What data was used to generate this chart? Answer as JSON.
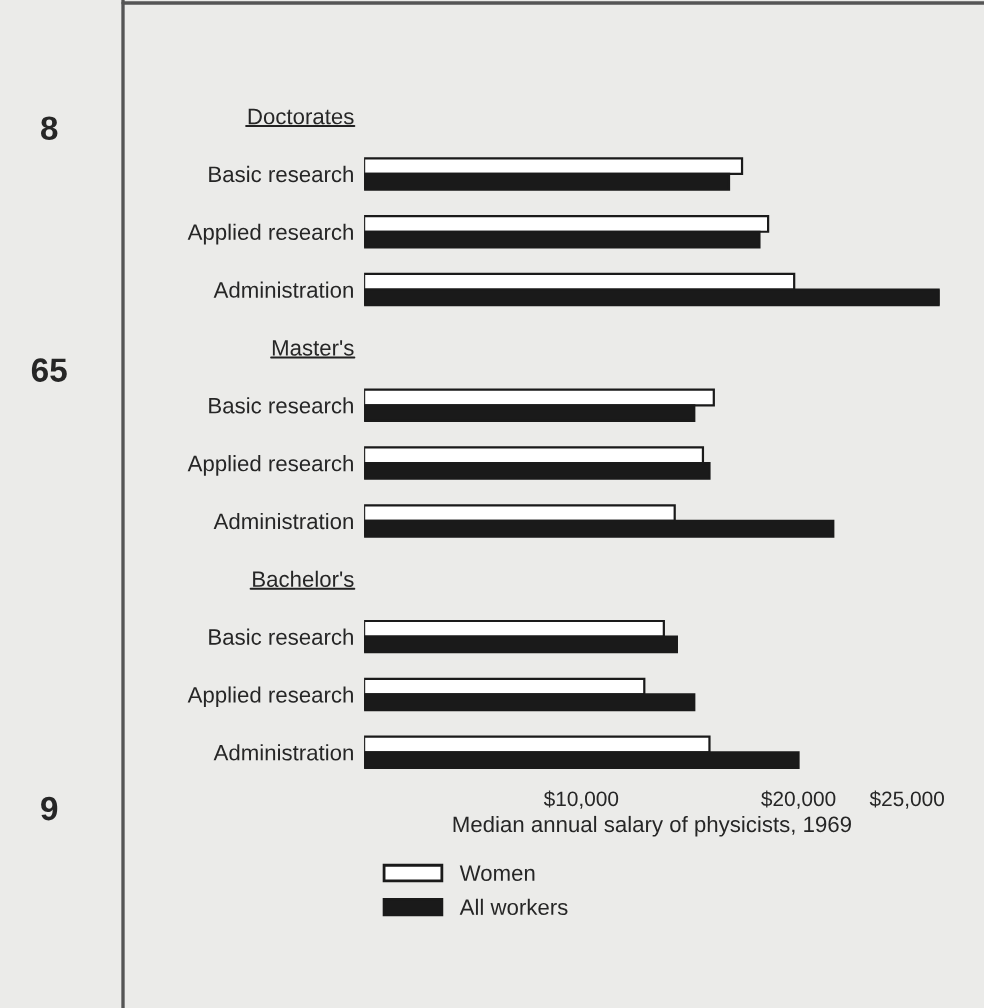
{
  "chart_data": {
    "type": "bar",
    "orientation": "horizontal",
    "categories": [
      "Doctorates",
      "Basic research",
      "Applied research",
      "Administration",
      "Master's",
      "Basic research",
      "Applied research",
      "Administration",
      "Bachelor's",
      "Basic research",
      "Applied research",
      "Administration"
    ],
    "series": [
      {
        "name": "Women",
        "color": "#ffffff",
        "values": [
          null,
          17400,
          18600,
          19800,
          null,
          16100,
          15600,
          14300,
          null,
          13800,
          12900,
          15900
        ]
      },
      {
        "name": "All workers",
        "color": "#1a1a1a",
        "values": [
          null,
          16800,
          18200,
          26500,
          null,
          15200,
          15900,
          21600,
          null,
          14400,
          15200,
          20000
        ]
      }
    ],
    "xlim": [
      0,
      26500
    ],
    "xticks": [
      {
        "value": 10000,
        "label": "$10,000"
      },
      {
        "value": 20000,
        "label": "$20,000"
      },
      {
        "value": 25000,
        "label": "$25,000"
      }
    ],
    "xlabel": "Median annual salary of physicists, 1969",
    "legend": "bottom",
    "grid": false,
    "annotations": [
      "8",
      "65",
      "9"
    ]
  }
}
